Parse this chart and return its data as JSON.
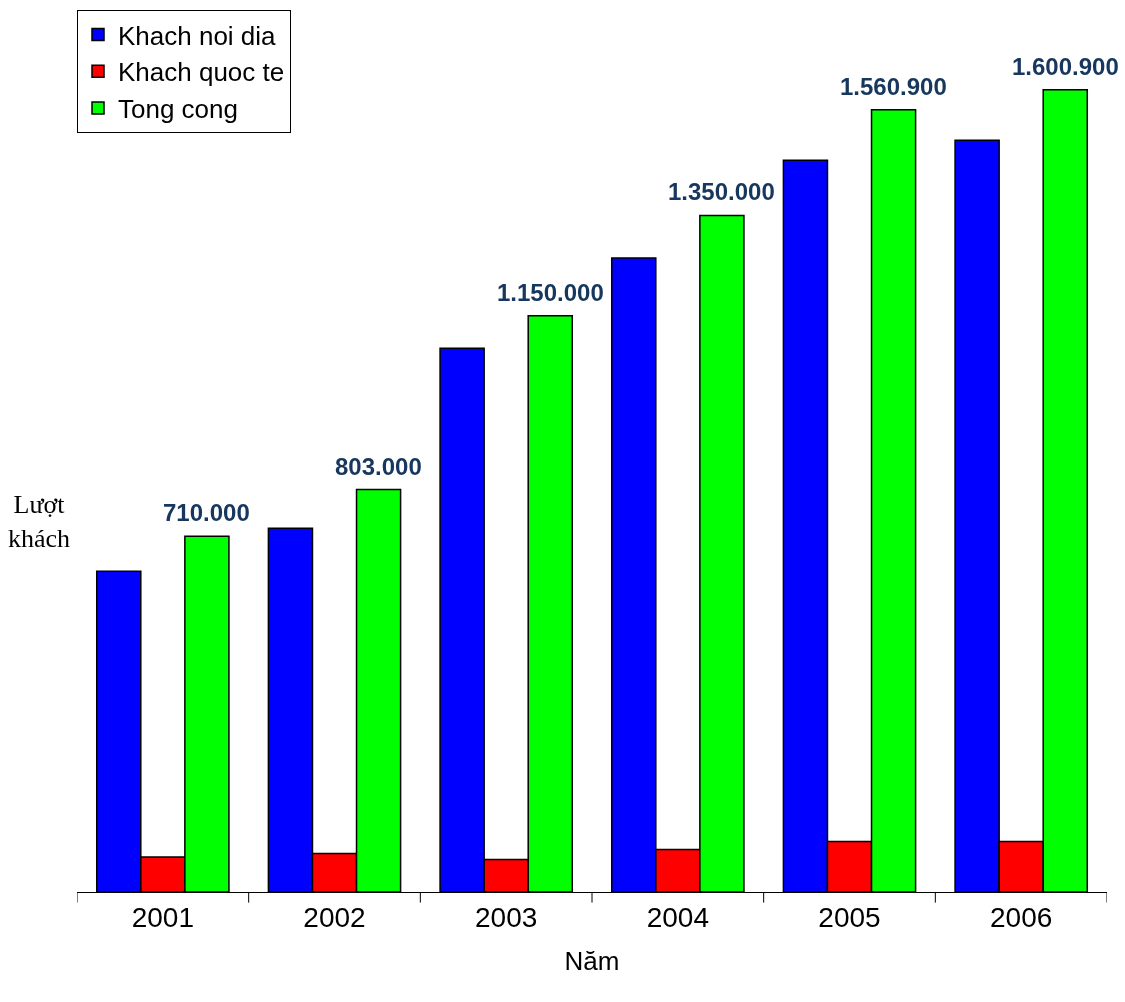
{
  "chart_data": {
    "type": "bar",
    "xlabel": "Năm",
    "ylabel": "Lượt khách",
    "categories": [
      "2001",
      "2002",
      "2003",
      "2004",
      "2005",
      "2006"
    ],
    "series": [
      {
        "name": "Khach noi dia",
        "color": "#0000ff",
        "values": [
          640000,
          726000,
          1085000,
          1265000,
          1460000,
          1500000
        ]
      },
      {
        "name": "Khach quoc te",
        "color": "#ff0000",
        "values": [
          70000,
          77000,
          65000,
          85000,
          100900,
          100900
        ]
      },
      {
        "name": "Tong cong",
        "color": "#00ff00",
        "values": [
          710000,
          803000,
          1150000,
          1350000,
          1560900,
          1600900
        ],
        "value_labels": [
          "710.000",
          "803.000",
          "1.150.000",
          "1.350.000",
          "1.560.900",
          "1.600.900"
        ]
      }
    ],
    "ylim": [
      0,
      1760000
    ],
    "legend": "top left"
  }
}
